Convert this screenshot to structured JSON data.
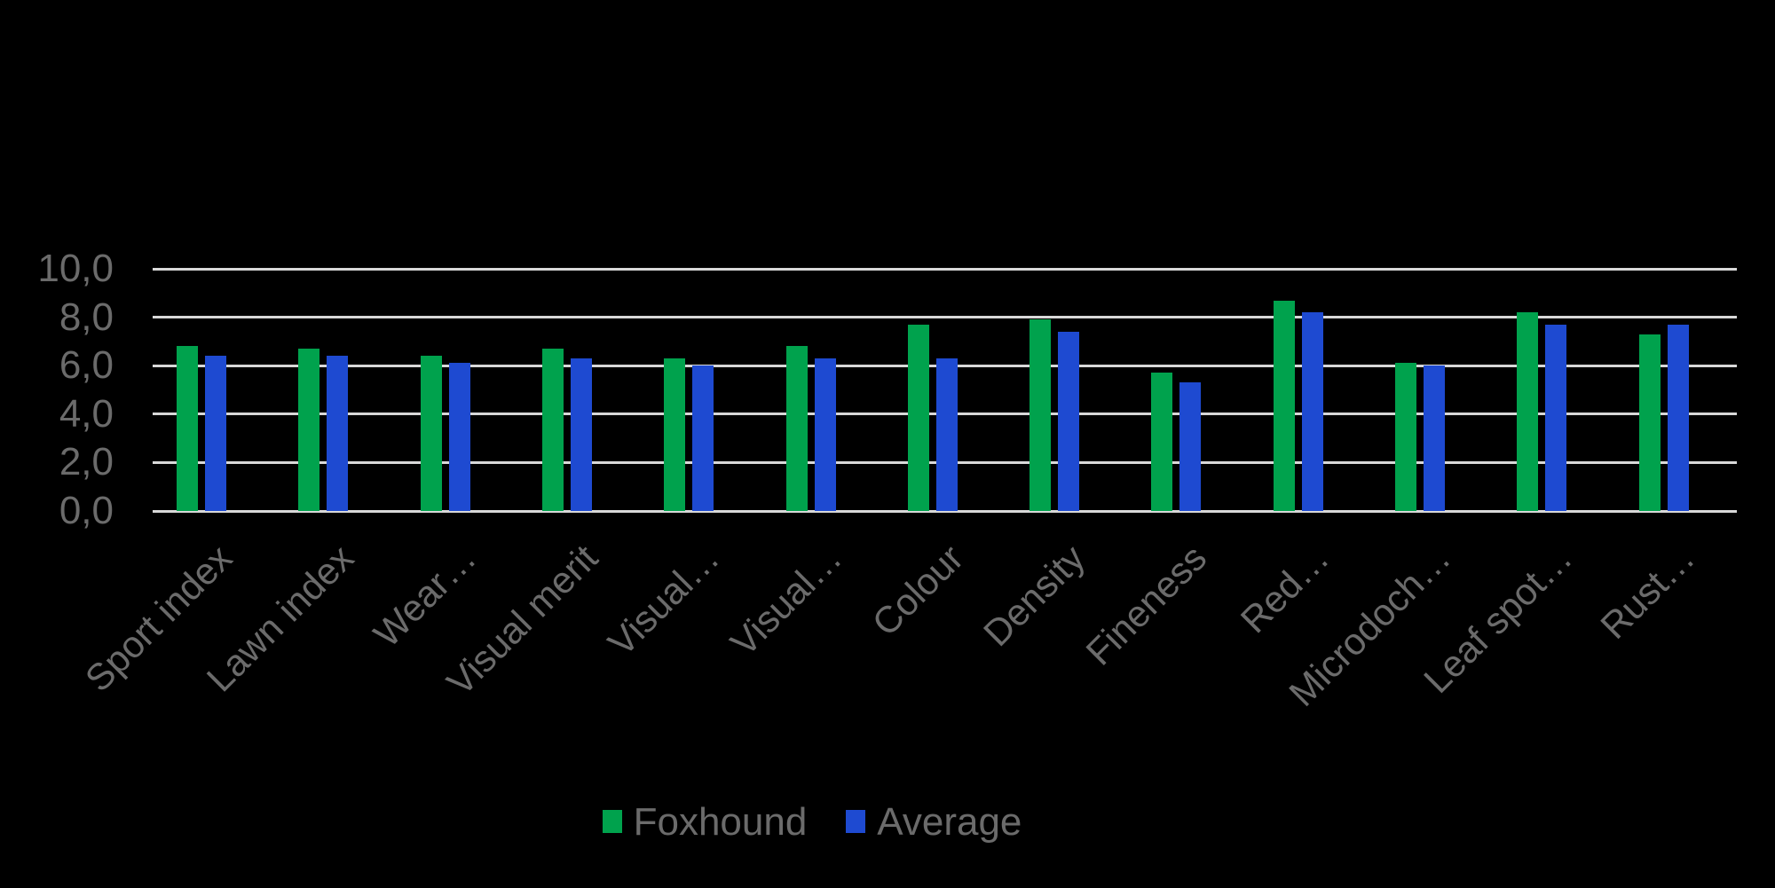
{
  "chart_data": {
    "type": "bar",
    "title": "",
    "xlabel": "",
    "ylabel": "",
    "categories": [
      "Sport index",
      "Lawn index",
      "Wear…",
      "Visual merit",
      "Visual…",
      "Visual…",
      "Colour",
      "Density",
      "Fineness",
      "Red…",
      "Microdoch…",
      "Leaf spot…",
      "Rust…"
    ],
    "series": [
      {
        "name": "Foxhound",
        "color": "#00a24d",
        "values": [
          6.8,
          6.7,
          6.4,
          6.7,
          6.3,
          6.8,
          7.7,
          7.9,
          5.7,
          8.7,
          6.1,
          8.2,
          7.3
        ]
      },
      {
        "name": "Average",
        "color": "#1e4ad1",
        "values": [
          6.4,
          6.4,
          6.1,
          6.3,
          6.0,
          6.3,
          6.3,
          7.4,
          5.3,
          8.2,
          6.0,
          7.7,
          7.7
        ]
      }
    ],
    "ylim": [
      0,
      10
    ],
    "ytick_labels": [
      "0,0",
      "2,0",
      "4,0",
      "6,0",
      "8,0",
      "10,0"
    ],
    "ytick_values": [
      0,
      2,
      4,
      6,
      8,
      10
    ],
    "decimal_separator": ",",
    "grid": true,
    "gridline_color": "#d8d8d8",
    "background_color": "#000000",
    "text_color": "#6b6b6b",
    "legend_position": "bottom"
  }
}
